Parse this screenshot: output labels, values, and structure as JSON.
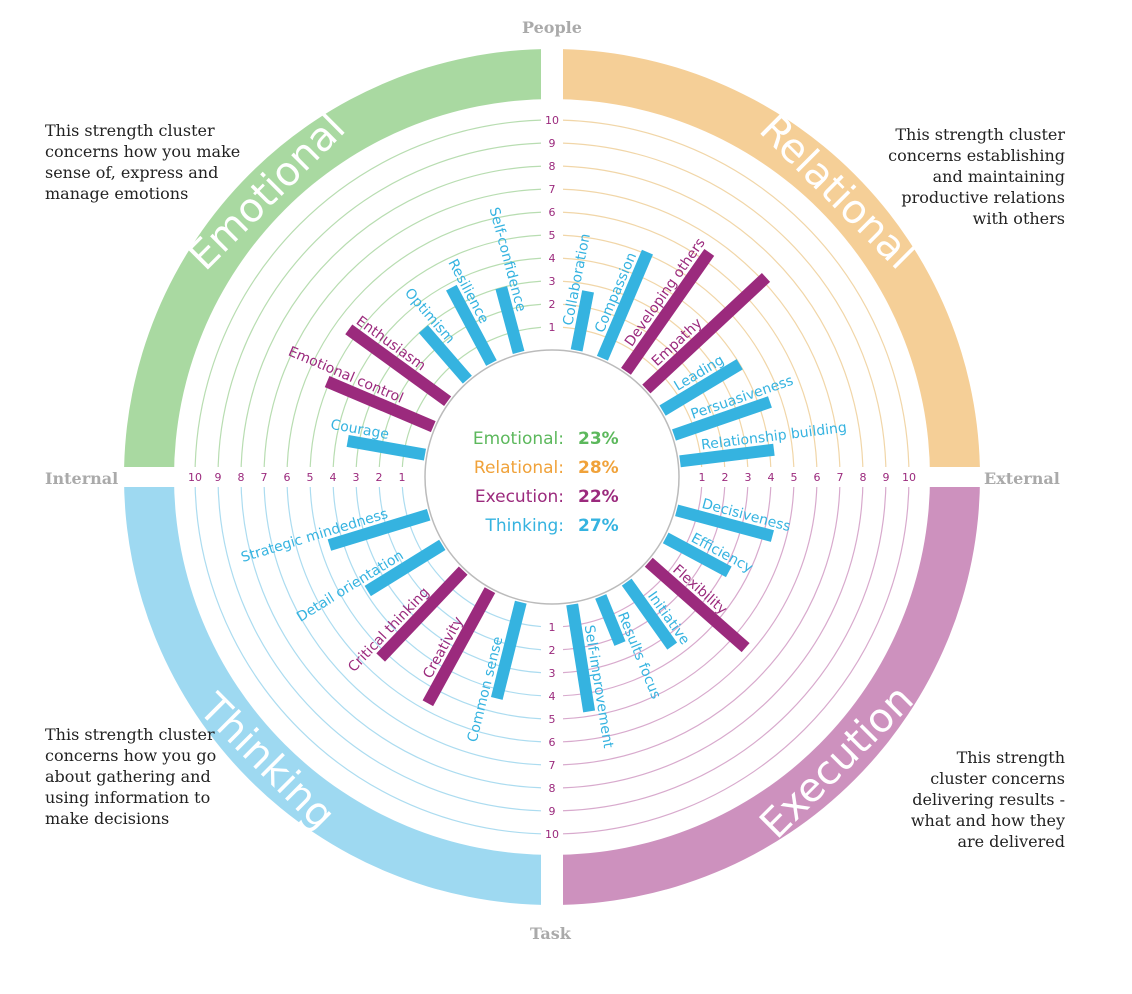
{
  "chart_data": {
    "type": "radial-bar",
    "scale": {
      "min": 0,
      "max": 10,
      "ticks": [
        1,
        2,
        3,
        4,
        5,
        6,
        7,
        8,
        9,
        10
      ]
    },
    "axes": {
      "top": "People",
      "bottom": "Task",
      "left": "Internal",
      "right": "External"
    },
    "summary": [
      {
        "label": "Emotional:",
        "value": "23%",
        "color": "#5cb85c"
      },
      {
        "label": "Relational:",
        "value": "28%",
        "color": "#f0a23a"
      },
      {
        "label": "Execution:",
        "value": "22%",
        "color": "#9b2a7d"
      },
      {
        "label": "Thinking:",
        "value": "27%",
        "color": "#35b3e0"
      }
    ],
    "clusters": [
      {
        "name": "Emotional",
        "band_color": "#a9d9a1",
        "ring_color": "#b8ddb1",
        "description": "This strength cluster concerns how you make sense of, express and manage emotions",
        "bars": [
          {
            "label": "Courage",
            "value": 3.5,
            "color": "#35b3e0"
          },
          {
            "label": "Emotional control",
            "value": 5.1,
            "color": "#9b2a7d"
          },
          {
            "label": "Enthusiasm",
            "value": 5.4,
            "color": "#9b2a7d"
          },
          {
            "label": "Optimism",
            "value": 3.0,
            "color": "#35b3e0"
          },
          {
            "label": "Resilience",
            "value": 3.8,
            "color": "#35b3e0"
          },
          {
            "label": "Self-confidence",
            "value": 3.0,
            "color": "#35b3e0"
          }
        ]
      },
      {
        "name": "Relational",
        "band_color": "#f5cf97",
        "ring_color": "#f1d6a8",
        "description": "This strength cluster concerns establishing and maintaining productive relations with others",
        "bars": [
          {
            "label": "Collaboration",
            "value": 2.7,
            "color": "#35b3e0"
          },
          {
            "label": "Compassion",
            "value": 5.1,
            "color": "#35b3e0"
          },
          {
            "label": "Developing others",
            "value": 6.4,
            "color": "#9b2a7d"
          },
          {
            "label": "Empathy",
            "value": 7.2,
            "color": "#9b2a7d"
          },
          {
            "label": "Leading",
            "value": 4.0,
            "color": "#35b3e0"
          },
          {
            "label": "Persuasiveness",
            "value": 4.5,
            "color": "#35b3e0"
          },
          {
            "label": "Relationship building",
            "value": 4.2,
            "color": "#35b3e0"
          }
        ]
      },
      {
        "name": "Execution",
        "band_color": "#cd91be",
        "ring_color": "#d8aacd",
        "description": "This strength cluster concerns delivering results - what and how they are delivered",
        "bars": [
          {
            "label": "Decisiveness",
            "value": 4.4,
            "color": "#35b3e0"
          },
          {
            "label": "Efficiency",
            "value": 3.2,
            "color": "#35b3e0"
          },
          {
            "label": "Flexibility",
            "value": 5.7,
            "color": "#9b2a7d"
          },
          {
            "label": "Initiative",
            "value": 3.5,
            "color": "#35b3e0"
          },
          {
            "label": "Results focus",
            "value": 2.3,
            "color": "#35b3e0"
          },
          {
            "label": "Self-improvement",
            "value": 4.8,
            "color": "#35b3e0"
          }
        ]
      },
      {
        "name": "Thinking",
        "band_color": "#9ed9f1",
        "ring_color": "#acdcf0",
        "description": "This strength cluster concerns how you go about gathering and using information to make decisions",
        "bars": [
          {
            "label": "Common sense",
            "value": 4.4,
            "color": "#35b3e0"
          },
          {
            "label": "Creativity",
            "value": 5.7,
            "color": "#9b2a7d"
          },
          {
            "label": "Critical thinking",
            "value": 5.3,
            "color": "#9b2a7d"
          },
          {
            "label": "Detail orientation",
            "value": 3.9,
            "color": "#35b3e0"
          },
          {
            "label": "Strategic mindedness",
            "value": 4.6,
            "color": "#35b3e0"
          }
        ]
      }
    ],
    "tick_color": "#9b2a7d"
  }
}
